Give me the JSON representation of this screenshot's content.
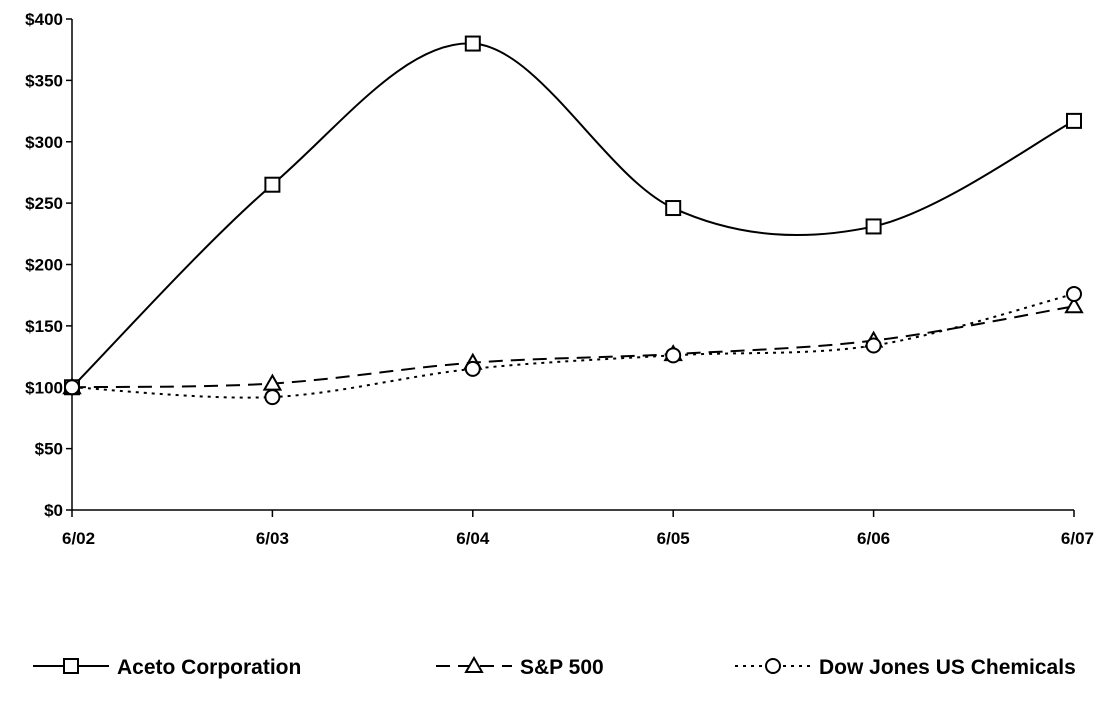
{
  "chart_data": {
    "type": "line",
    "categories": [
      "6/02",
      "6/03",
      "6/04",
      "6/05",
      "6/06",
      "6/07"
    ],
    "ylim": [
      0,
      400
    ],
    "yticks": [
      0,
      50,
      100,
      150,
      200,
      250,
      300,
      350,
      400
    ],
    "ytick_labels": [
      "$0",
      "$50",
      "$100",
      "$150",
      "$200",
      "$250",
      "$300",
      "$350",
      "$400"
    ],
    "grid": false,
    "legend_position": "bottom",
    "series": [
      {
        "name": "Aceto Corporation",
        "values": [
          100,
          265,
          380,
          246,
          231,
          317
        ],
        "line_style": "solid",
        "marker": "square",
        "smooth": true
      },
      {
        "name": "S&P 500",
        "values": [
          100,
          103,
          120,
          127,
          138,
          166
        ],
        "line_style": "dashed",
        "marker": "triangle",
        "smooth": true
      },
      {
        "name": "Dow Jones US Chemicals",
        "values": [
          100,
          92,
          115,
          126,
          134,
          176
        ],
        "line_style": "dotted",
        "marker": "circle",
        "smooth": true
      }
    ],
    "colors": {
      "line": "#000000",
      "background": "#ffffff"
    }
  }
}
